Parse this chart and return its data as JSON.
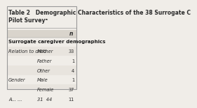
{
  "title": "Table 2   Demographic Characteristics of the 38 Surrogate C\nPilot Surveyᵃ",
  "title_fontsize": 5.5,
  "bg_color": "#f0ede8",
  "header_col": "n",
  "section_header": "Surrogate caregiver demographics",
  "rows": [
    {
      "col1": "Relation to child",
      "col2": "Mother",
      "col3": "33"
    },
    {
      "col1": "",
      "col2": "Father",
      "col3": "1"
    },
    {
      "col1": "",
      "col2": "Other",
      "col3": "4"
    },
    {
      "col1": "Gender",
      "col2": "Male",
      "col3": "1"
    },
    {
      "col1": "",
      "col2": "Female",
      "col3": "37"
    },
    {
      "col1": "A... ...",
      "col2": "31  44",
      "col3": "11"
    }
  ],
  "header_bg": "#d9d4cc",
  "row_bg_alt": "#e8e4de",
  "row_bg_main": "#f0ede8",
  "border_color": "#999999",
  "text_color": "#2a2a2a",
  "section_color": "#1a1a1a"
}
